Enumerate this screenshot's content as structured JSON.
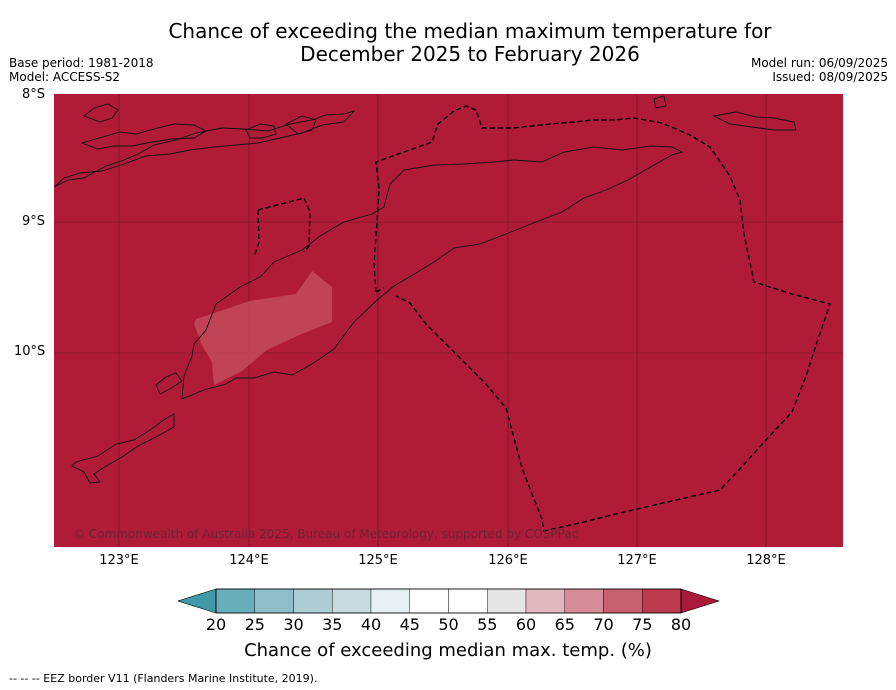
{
  "title": {
    "line1": "Chance of exceeding the median maximum temperature for",
    "line2": "December 2025 to February 2026"
  },
  "meta": {
    "base_period": "Base period: 1981-2018",
    "model": "Model: ACCESS-S2",
    "model_run": "Model run: 06/09/2025",
    "issued": "Issued: 08/09/2025"
  },
  "axes": {
    "lat_labels": [
      "8°S",
      "9°S",
      "10°S"
    ],
    "lon_labels": [
      "123°E",
      "124°E",
      "125°E",
      "126°E",
      "127°E",
      "128°E"
    ],
    "lat_range": [
      -8,
      -11.5
    ],
    "lon_range": [
      122.5,
      128.6
    ]
  },
  "map": {
    "fill_color": "#b01c38",
    "lower_bin_color": "#c44a5c",
    "grid_color": "#5a1020",
    "coast_color": "#111111",
    "eez_color": "#000000"
  },
  "copyright": "© Commonwealth of Australia 2025, Bureau of Meteorology, supported by COSPPac",
  "colorbar": {
    "ticks": [
      "20",
      "25",
      "30",
      "35",
      "40",
      "45",
      "50",
      "55",
      "60",
      "65",
      "70",
      "75",
      "80"
    ],
    "colors": [
      "#3f99a7",
      "#69aebb",
      "#8ebfc9",
      "#abcdd3",
      "#c7dbde",
      "#e6eff1",
      "#ffffff",
      "#ffffff",
      "#e6e6e6",
      "#e2b8c0",
      "#d58a97",
      "#c8616f",
      "#bb3a4d"
    ],
    "under_color": "#3f99a7",
    "over_color": "#a8193a",
    "label": "Chance of exceeding median max. temp. (%)"
  },
  "footnote": "--  --  -- EEZ border V11 (Flanders Marine Institute, 2019)."
}
